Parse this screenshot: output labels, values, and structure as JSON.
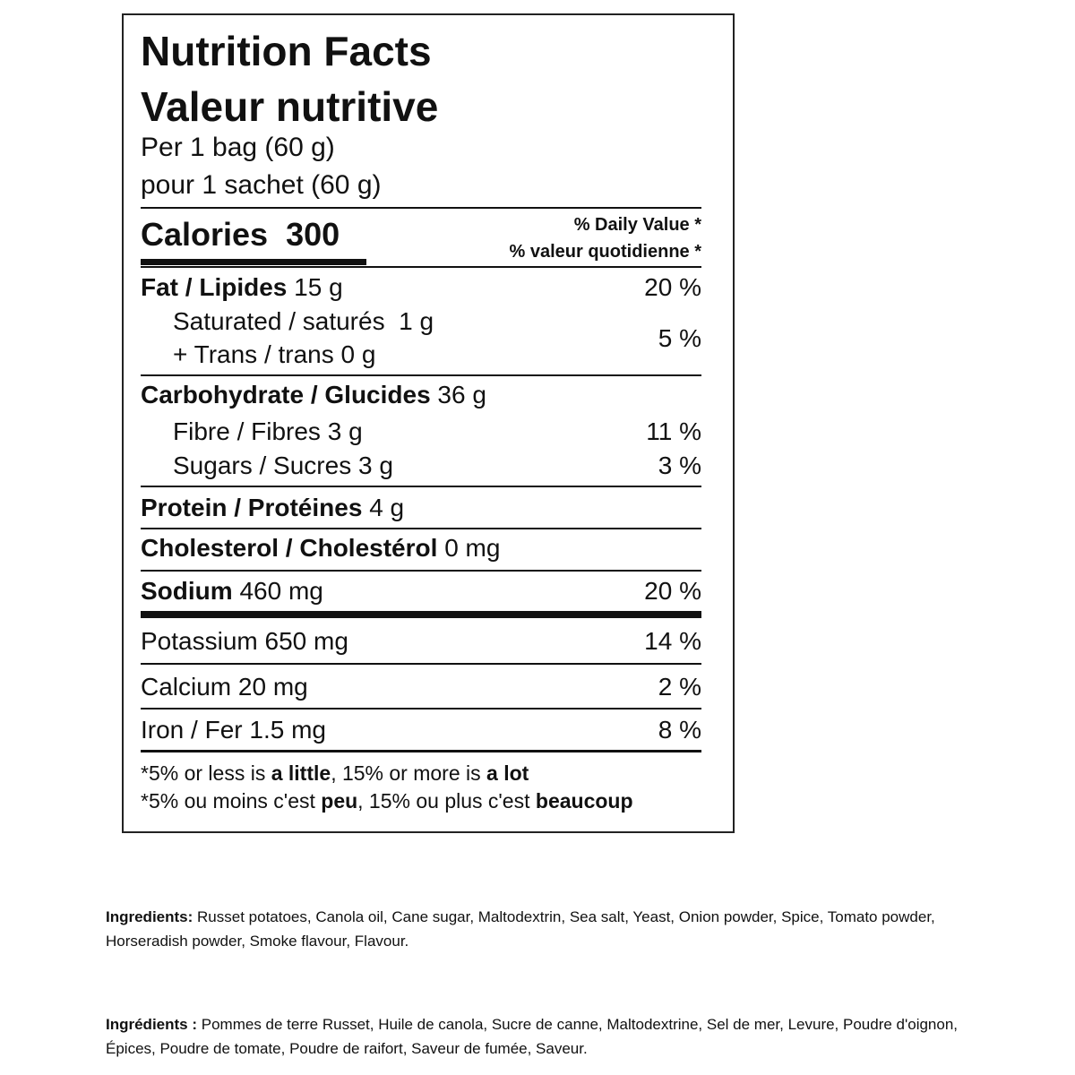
{
  "label": {
    "title_en": "Nutrition Facts",
    "title_fr": "Valeur nutritive",
    "serving_en": "Per 1 bag (60 g)",
    "serving_fr": "pour 1 sachet (60 g)",
    "calories_label": "Calories",
    "calories": "300",
    "dv_en": "% Daily Value *",
    "dv_fr": "% valeur quotidienne *",
    "rows": [
      {
        "name": "Fat / Lipides",
        "amount": "15 g",
        "dv": "20 %"
      },
      {
        "name": "Saturated / saturés",
        "amount": "1 g",
        "dv": "5 %"
      },
      {
        "name": "+ Trans / trans",
        "amount": "0 g"
      },
      {
        "name": "Carbohydrate / Glucides",
        "amount": "36 g"
      },
      {
        "name": "Fibre / Fibres",
        "amount": "3 g",
        "dv": "11 %"
      },
      {
        "name": "Sugars / Sucres",
        "amount": "3 g",
        "dv": "3 %"
      },
      {
        "name": "Protein / Protéines",
        "amount": "4 g"
      },
      {
        "name": "Cholesterol / Cholestérol",
        "amount": "0 mg"
      },
      {
        "name": "Sodium",
        "amount": "460 mg",
        "dv": "20 %"
      },
      {
        "name": "Potassium",
        "amount": "650 mg",
        "dv": "14 %"
      },
      {
        "name": "Calcium",
        "amount": "20 mg",
        "dv": "2 %"
      },
      {
        "name": "Iron / Fer",
        "amount": "1.5 mg",
        "dv": "8 %"
      }
    ],
    "footnote_en": [
      "*5% or less is ",
      "a little",
      ", 15% or more is ",
      "a lot"
    ],
    "footnote_fr": [
      "*5% ou moins c'est ",
      "peu",
      ", 15% ou plus c'est ",
      "beaucoup"
    ]
  },
  "ingredients": {
    "en_label": "Ingredients:",
    "en_text": "Russet potatoes, Canola oil, Cane sugar, Maltodextrin, Sea salt, Yeast, Onion powder, Spice, Tomato powder, Horseradish powder, Smoke flavour, Flavour.",
    "fr_label": "Ingrédients :",
    "fr_text": "Pommes de terre Russet, Huile de canola, Sucre de canne, Maltodextrine, Sel de mer, Levure, Poudre d'oignon, Épices, Poudre de tomate, Poudre de raifort, Saveur de fumée, Saveur."
  }
}
